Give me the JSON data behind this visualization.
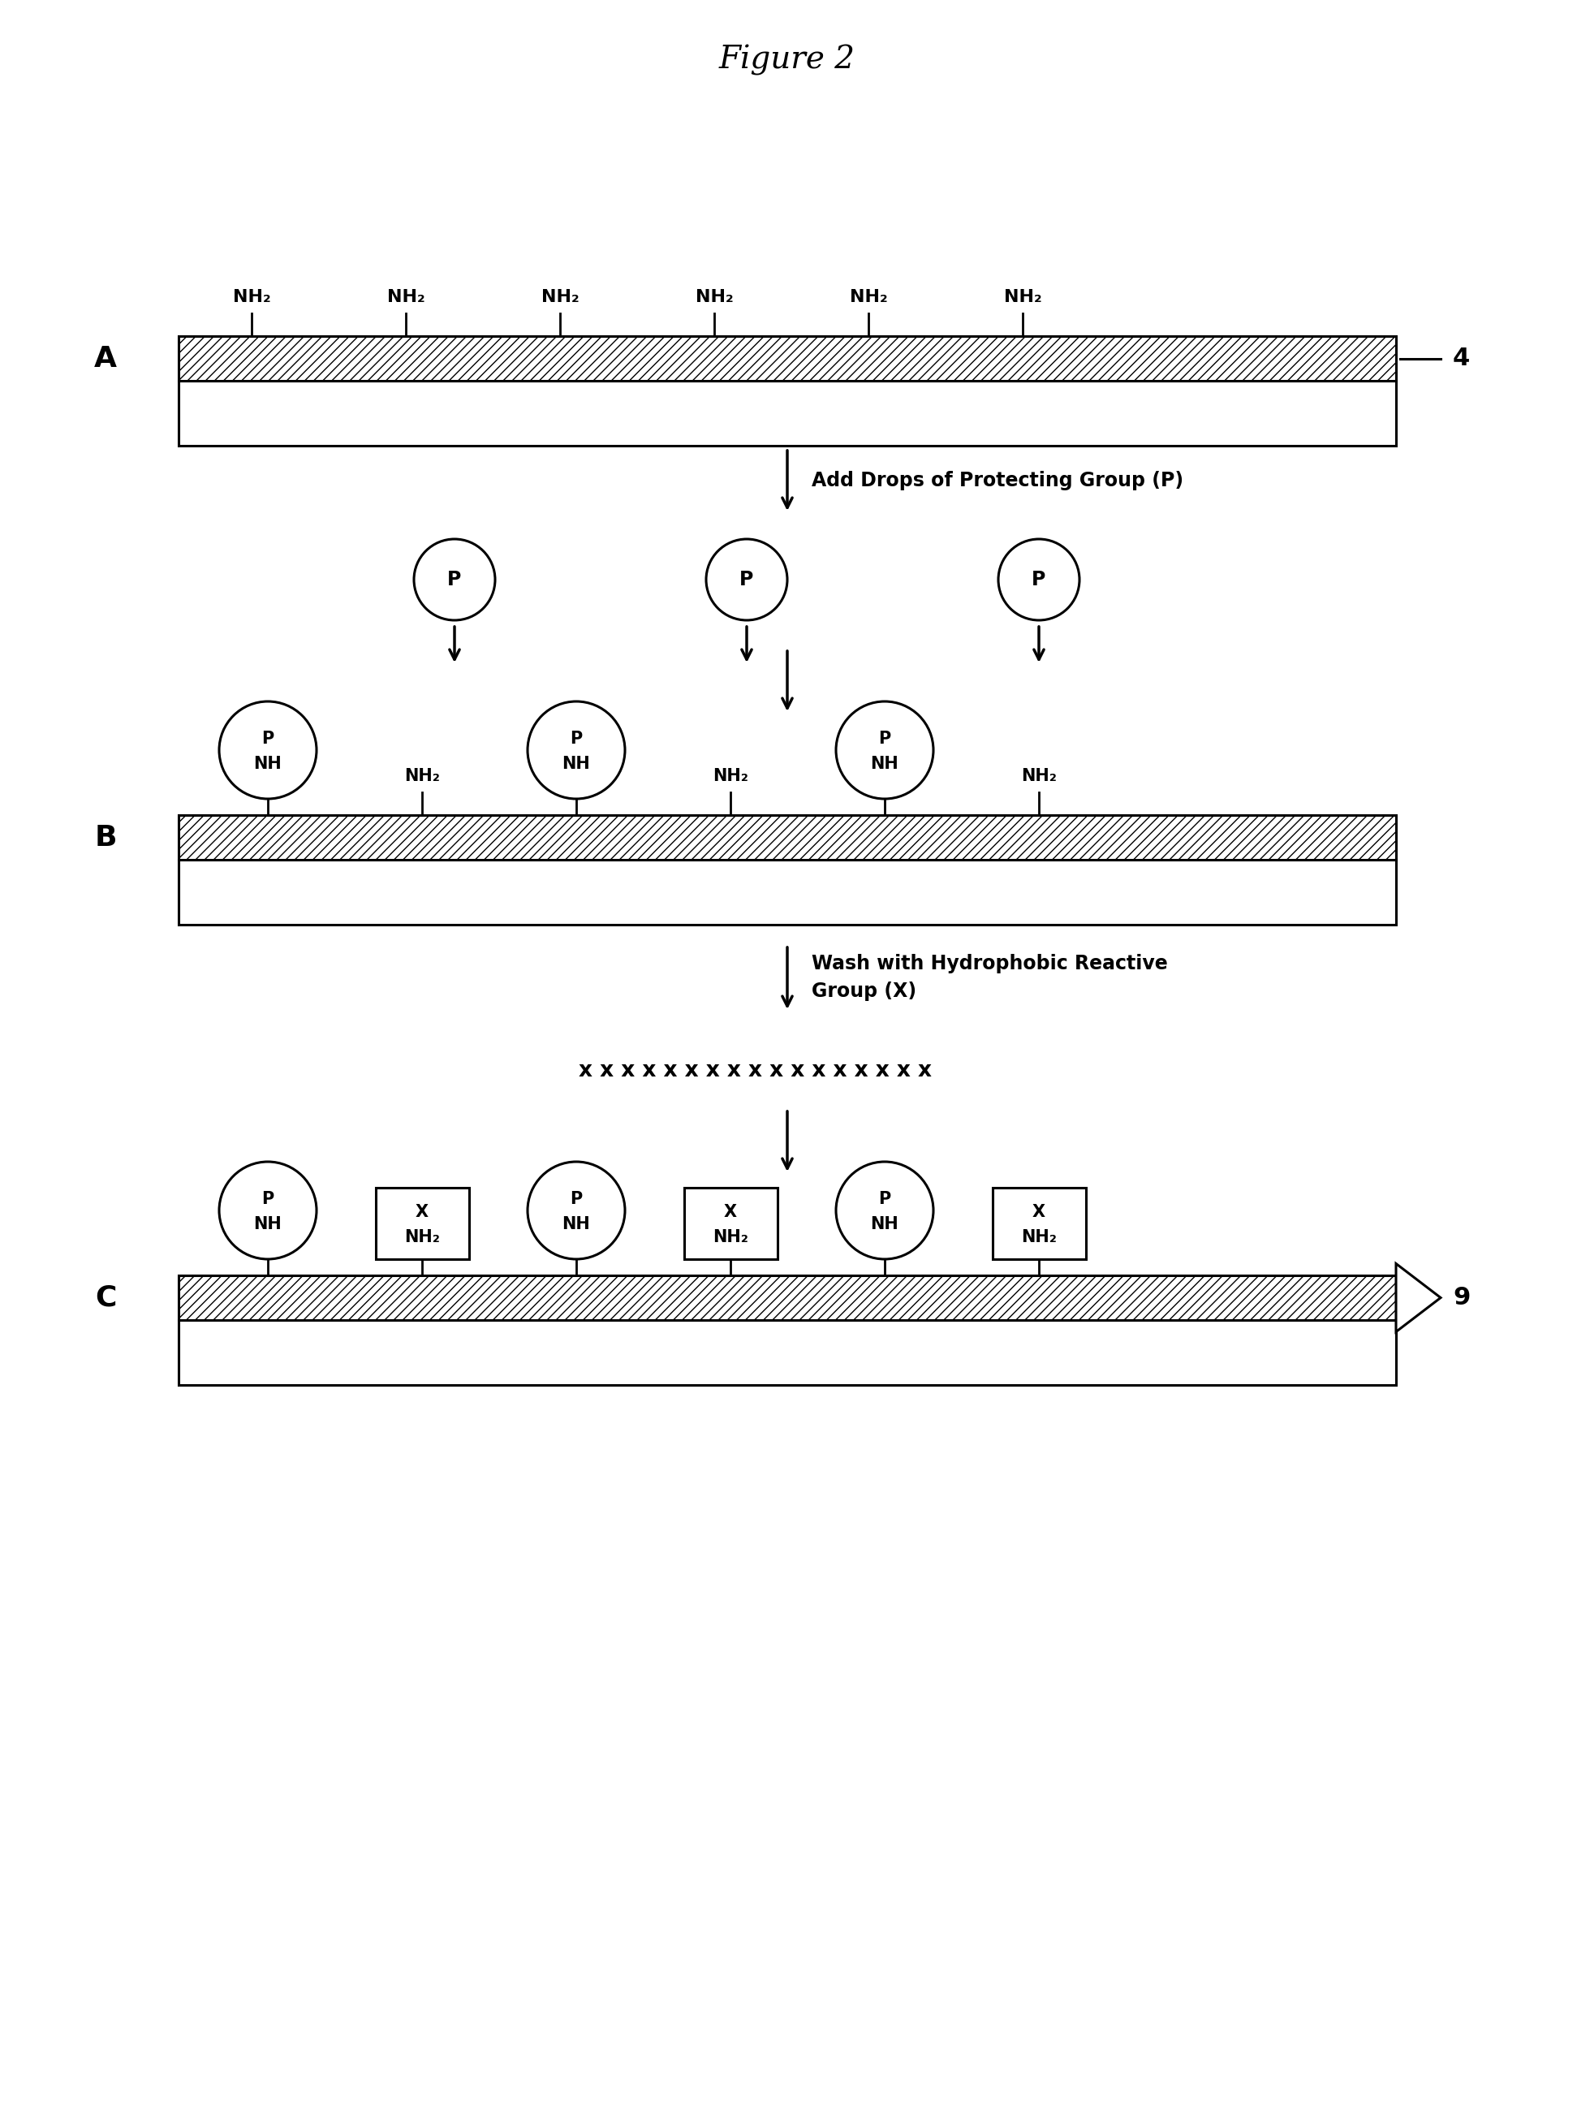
{
  "title": "Figure 2",
  "bg_color": "#ffffff",
  "label_A": "A",
  "label_B": "B",
  "label_C": "C",
  "label_4": "4",
  "label_9": "9",
  "arrow_label_1": "Add Drops of Protecting Group (P)",
  "arrow_label_2": "Wash with Hydrophobic Reactive\nGroup (X)",
  "x_row_text": "x x x x x x x x x x x x x x x x x",
  "nh2_label": "NH₂",
  "p_label": "P",
  "nh_label": "NH",
  "x_label": "X"
}
